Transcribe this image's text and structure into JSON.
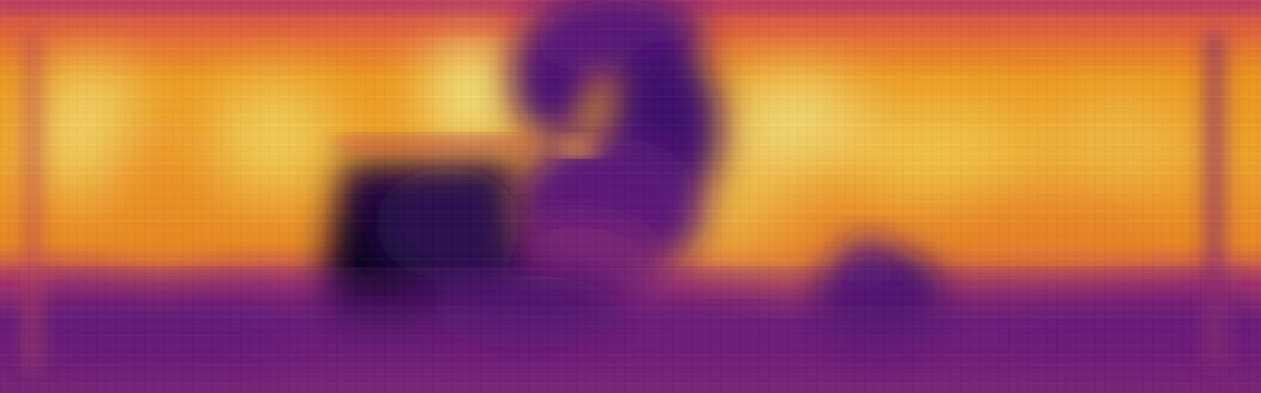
{
  "image": {
    "description_type": "depth-map-heatmap",
    "colormap": "inferno",
    "colors": {
      "deep": "#0a0220",
      "dark_purple": "#3b0a6b",
      "purple": "#6a1a7a",
      "magenta": "#b83a6a",
      "orange_red": "#e8603a",
      "orange": "#f08a1a",
      "amber": "#f7b52a",
      "yellow": "#f5e87a"
    }
  }
}
